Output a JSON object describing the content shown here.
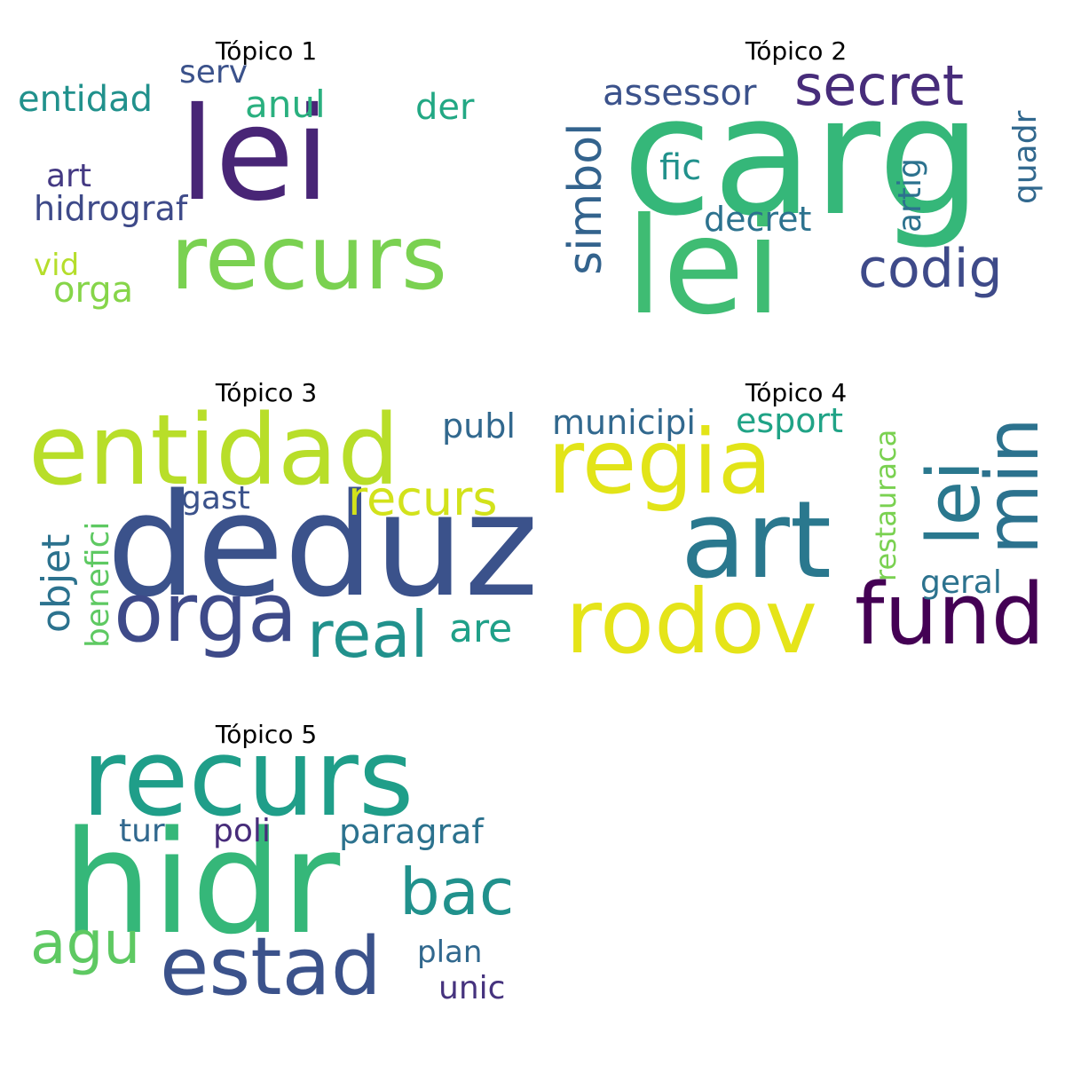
{
  "panels": [
    {
      "title": "Tópico 1",
      "words": [
        {
          "text": "lei",
          "color": "#482576"
        },
        {
          "text": "recurs",
          "color": "#7ad151"
        },
        {
          "text": "entidad",
          "color": "#21918c"
        },
        {
          "text": "serv",
          "color": "#3b528b"
        },
        {
          "text": "anul",
          "color": "#2ab07f"
        },
        {
          "text": "der",
          "color": "#22a884"
        },
        {
          "text": "art",
          "color": "#443983"
        },
        {
          "text": "hidrograf",
          "color": "#3e4a89"
        },
        {
          "text": "vid",
          "color": "#b5de2b"
        },
        {
          "text": "orga",
          "color": "#86d549"
        }
      ]
    },
    {
      "title": "Tópico 2",
      "words": [
        {
          "text": "carg",
          "color": "#35b779"
        },
        {
          "text": "lei",
          "color": "#3fbc73"
        },
        {
          "text": "secret",
          "color": "#472c7a"
        },
        {
          "text": "assessor",
          "color": "#3b528b"
        },
        {
          "text": "simbol",
          "color": "#33638d"
        },
        {
          "text": "fic",
          "color": "#21918c"
        },
        {
          "text": "decret",
          "color": "#2c728e"
        },
        {
          "text": "codig",
          "color": "#3e4a89"
        },
        {
          "text": "artig",
          "color": "#2c728e"
        },
        {
          "text": "quadr",
          "color": "#31688e"
        }
      ]
    },
    {
      "title": "Tópico 3",
      "words": [
        {
          "text": "entidad",
          "color": "#b8de29"
        },
        {
          "text": "deduz",
          "color": "#3b528b"
        },
        {
          "text": "orga",
          "color": "#3e4a89"
        },
        {
          "text": "real",
          "color": "#21918c"
        },
        {
          "text": "recurs",
          "color": "#d2e21b"
        },
        {
          "text": "publ",
          "color": "#31688e"
        },
        {
          "text": "gast",
          "color": "#3b528b"
        },
        {
          "text": "objet",
          "color": "#2c728e"
        },
        {
          "text": "benefici",
          "color": "#5ec962"
        },
        {
          "text": "are",
          "color": "#1fa088"
        }
      ]
    },
    {
      "title": "Tópico 4",
      "words": [
        {
          "text": "regia",
          "color": "#e2e418"
        },
        {
          "text": "art",
          "color": "#2a788e"
        },
        {
          "text": "rodov",
          "color": "#e5e419"
        },
        {
          "text": "fund",
          "color": "#440154"
        },
        {
          "text": "lei",
          "color": "#2a788e"
        },
        {
          "text": "min",
          "color": "#2c728e"
        },
        {
          "text": "municipi",
          "color": "#31688e"
        },
        {
          "text": "esport",
          "color": "#20a386"
        },
        {
          "text": "restauraca",
          "color": "#7ad151"
        },
        {
          "text": "geral",
          "color": "#2c728e"
        }
      ]
    },
    {
      "title": "Tópico 5",
      "words": [
        {
          "text": "recurs",
          "color": "#1f9e89"
        },
        {
          "text": "hidr",
          "color": "#35b779"
        },
        {
          "text": "estad",
          "color": "#3b528b"
        },
        {
          "text": "bac",
          "color": "#21918c"
        },
        {
          "text": "agu",
          "color": "#5ec962"
        },
        {
          "text": "tur",
          "color": "#31688e"
        },
        {
          "text": "poli",
          "color": "#472c7a"
        },
        {
          "text": "paragraf",
          "color": "#2c728e"
        },
        {
          "text": "plan",
          "color": "#31688e"
        },
        {
          "text": "unic",
          "color": "#46337e"
        }
      ]
    }
  ]
}
